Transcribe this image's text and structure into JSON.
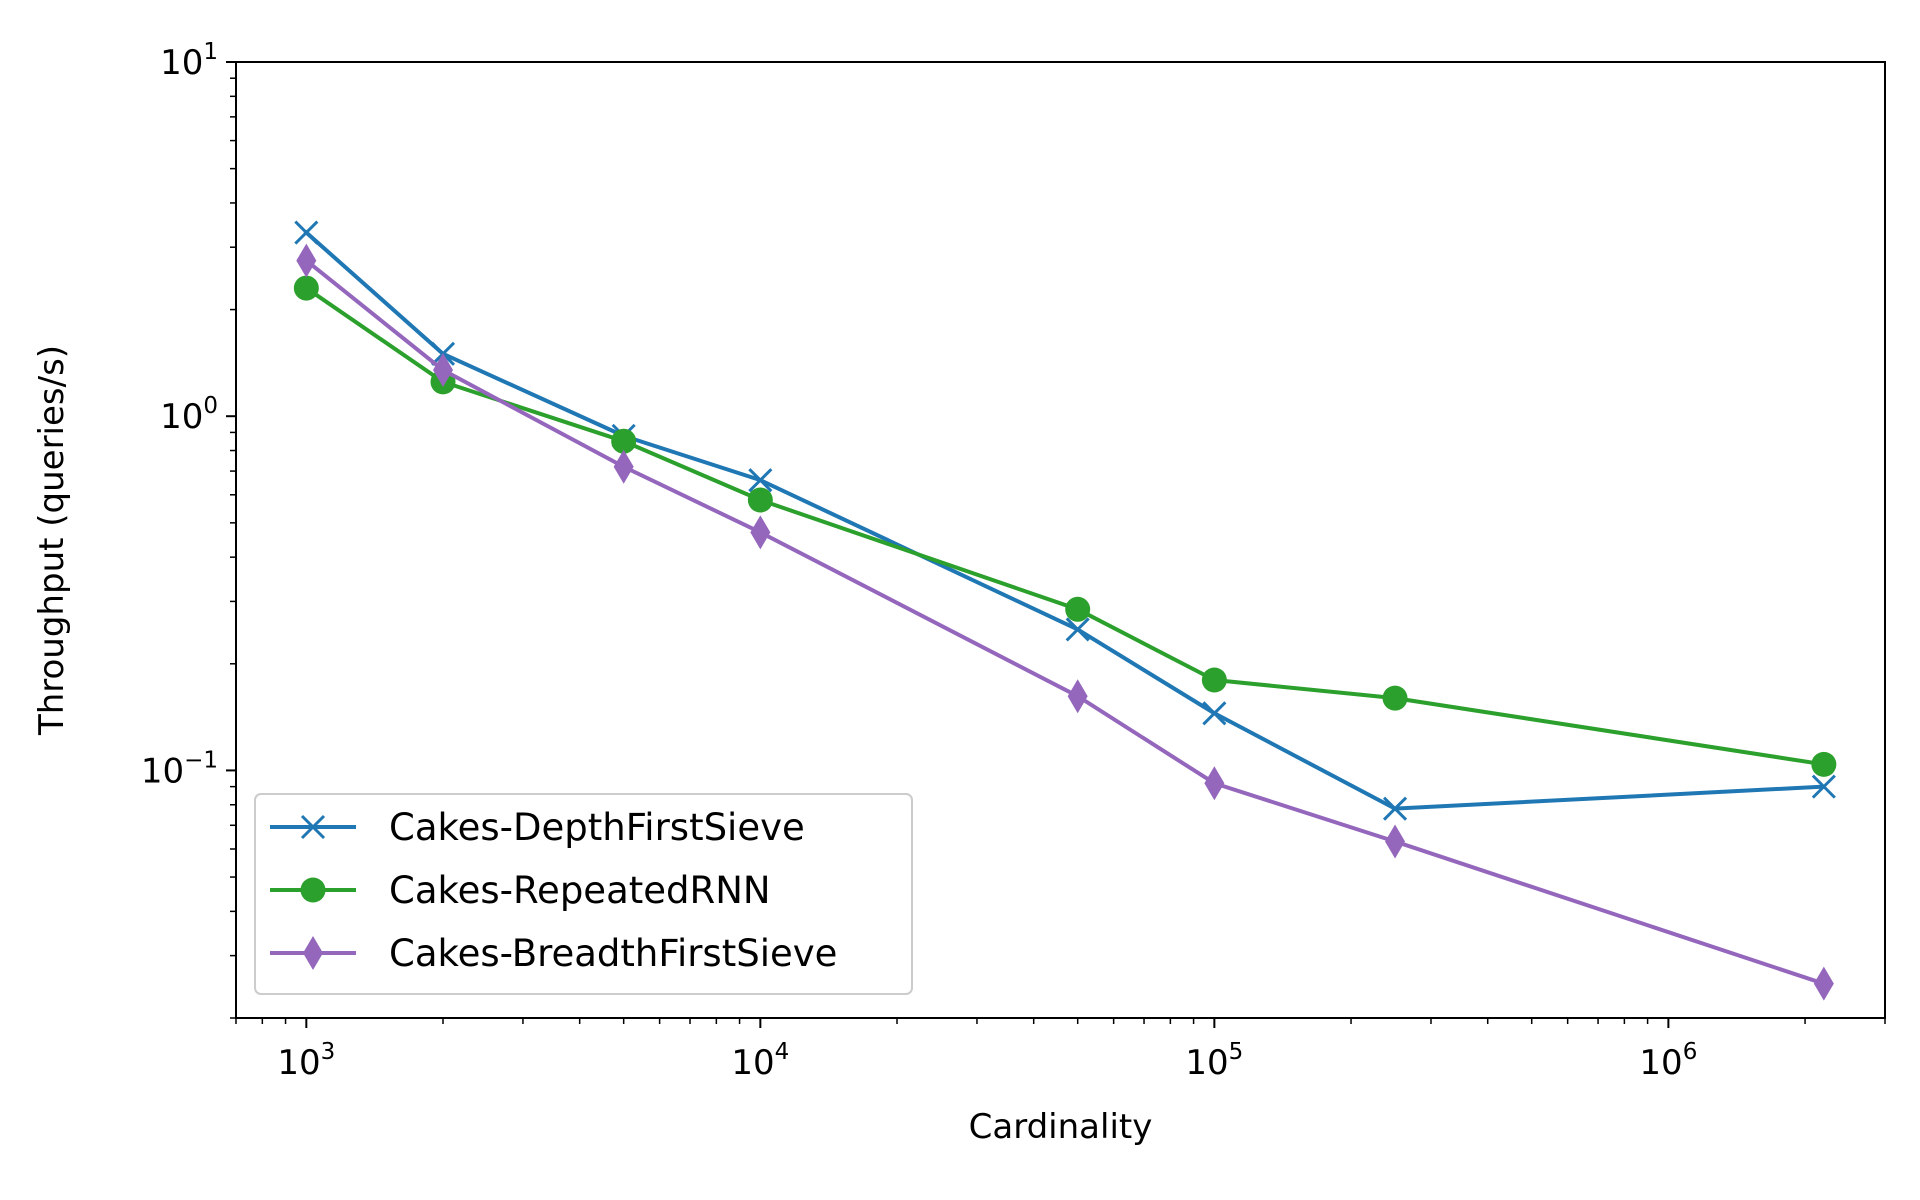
{
  "chart_data": {
    "type": "line",
    "title": "",
    "xlabel": "Cardinality",
    "ylabel": "Throughput (queries/s)",
    "xscale": "log",
    "yscale": "log",
    "xlim": [
      700,
      3000000
    ],
    "ylim": [
      0.02,
      10
    ],
    "x_ticks": [
      {
        "value": 1000,
        "base": "10",
        "exp": "3"
      },
      {
        "value": 10000,
        "base": "10",
        "exp": "4"
      },
      {
        "value": 100000,
        "base": "10",
        "exp": "5"
      },
      {
        "value": 1000000,
        "base": "10",
        "exp": "6"
      }
    ],
    "y_ticks": [
      {
        "value": 0.1,
        "base": "10",
        "exp": "−1"
      },
      {
        "value": 1,
        "base": "10",
        "exp": "0"
      },
      {
        "value": 10,
        "base": "10",
        "exp": "1"
      }
    ],
    "x": [
      1000,
      2000,
      5000,
      10000,
      50000,
      100000,
      250000,
      2200000
    ],
    "legend_position": "lower-left",
    "series": [
      {
        "name": "Cakes-DepthFirstSieve",
        "color": "#1f77b4",
        "marker": "x",
        "values": [
          3.3,
          1.5,
          0.88,
          0.66,
          0.25,
          0.145,
          0.078,
          0.09
        ]
      },
      {
        "name": "Cakes-RepeatedRNN",
        "color": "#2ca02c",
        "marker": "circle",
        "values": [
          2.3,
          1.25,
          0.85,
          0.58,
          0.285,
          0.18,
          0.16,
          0.104
        ]
      },
      {
        "name": "Cakes-BreadthFirstSieve",
        "color": "#9467bd",
        "marker": "diamond",
        "values": [
          2.75,
          1.35,
          0.72,
          0.47,
          0.162,
          0.092,
          0.063,
          0.025
        ]
      }
    ]
  }
}
